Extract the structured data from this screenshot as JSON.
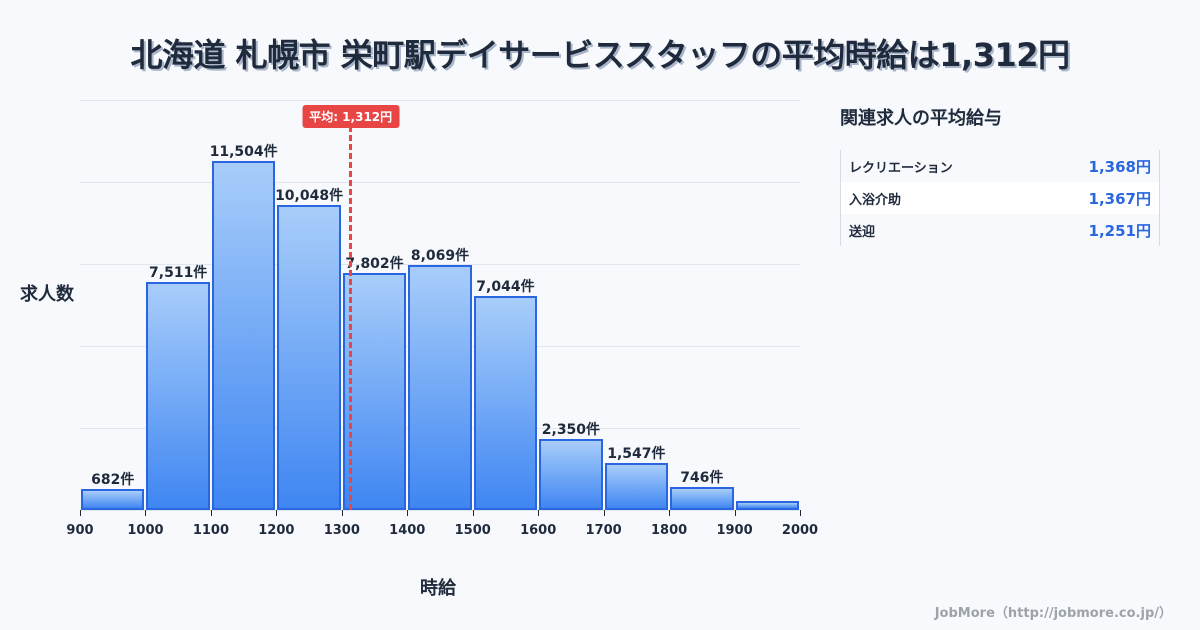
{
  "title": "北海道 札幌市 栄町駅デイサービススタッフの平均時給は1,312円",
  "chart_data": {
    "type": "bar",
    "title": "北海道 札幌市 栄町駅デイサービススタッフの平均時給は1,312円",
    "xlabel": "時給",
    "ylabel": "求人数",
    "categories": [
      "900-1000",
      "1000-1100",
      "1100-1200",
      "1200-1300",
      "1300-1400",
      "1400-1500",
      "1500-1600",
      "1600-1700",
      "1700-1800",
      "1800-1900",
      "1900-2000"
    ],
    "bin_edges": [
      900,
      1000,
      1100,
      1200,
      1300,
      1400,
      1500,
      1600,
      1700,
      1800,
      1900,
      2000
    ],
    "values": [
      682,
      7511,
      11504,
      10048,
      7802,
      8069,
      7044,
      2350,
      1547,
      746,
      300
    ],
    "value_labels": [
      "682件",
      "7,511件",
      "11,504件",
      "10,048件",
      "7,802件",
      "8,069件",
      "7,044件",
      "2,350件",
      "1,547件",
      "746件",
      ""
    ],
    "xticks": [
      "900",
      "1000",
      "1100",
      "1200",
      "1300",
      "1400",
      "1500",
      "1600",
      "1700",
      "1800",
      "1900",
      "2000"
    ],
    "xlim": [
      900,
      2000
    ],
    "ylim": [
      0,
      13500
    ],
    "grid": true,
    "annotations": [
      {
        "type": "vline",
        "x": 1312,
        "label": "平均: 1,312円",
        "color": "#e84545"
      }
    ],
    "bar_color": "#3f86f2",
    "bar_border": "#2a66e0"
  },
  "average": {
    "label": "平均: 1,312円",
    "value": 1312
  },
  "side": {
    "title": "関連求人の平均給与",
    "rows": [
      {
        "name": "レクリエーション",
        "value": "1,368円"
      },
      {
        "name": "入浴介助",
        "value": "1,367円"
      },
      {
        "name": "送迎",
        "value": "1,251円"
      }
    ]
  },
  "footer": "JobMore（http://jobmore.co.jp/）"
}
